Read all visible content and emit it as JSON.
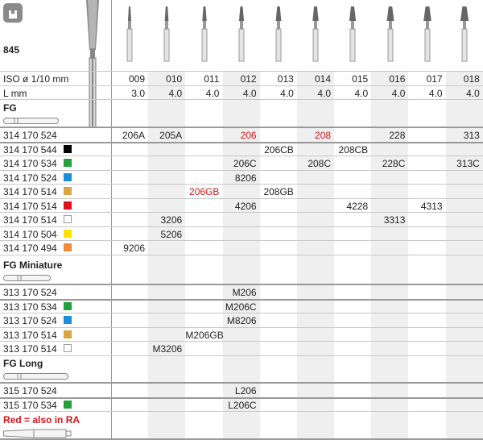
{
  "header": {
    "icon": "bur-shape-icon",
    "product_number": "845"
  },
  "columns": {
    "iso_label": "ISO ø 1/10 mm",
    "length_label": "L mm",
    "iso": [
      "009",
      "010",
      "011",
      "012",
      "013",
      "014",
      "015",
      "016",
      "017",
      "018"
    ],
    "length": [
      "3.0",
      "4.0",
      "4.0",
      "4.0",
      "4.0",
      "4.0",
      "4.0",
      "4.0",
      "4.0",
      "4.0"
    ]
  },
  "colors": {
    "black": "#000000",
    "green": "#23a03c",
    "blue": "#1b8fd9",
    "gold": "#d9a545",
    "red": "#e2101b",
    "white": "#ffffff",
    "yellow": "#ffe100",
    "orange": "#f08a3c",
    "highlight_text": "#d4151c"
  },
  "sections": [
    {
      "title": "FG",
      "rows": [
        {
          "ref": "314 170 524",
          "swatch": null,
          "cells": [
            "206A",
            "205A",
            "",
            "206",
            "",
            "208",
            "",
            "228",
            "",
            "313"
          ],
          "red": [
            3,
            5
          ]
        },
        {
          "ref": "314 170 544",
          "swatch": "black",
          "cells": [
            "",
            "",
            "",
            "",
            "206CB",
            "",
            "208CB",
            "",
            "",
            ""
          ],
          "red": []
        },
        {
          "ref": "314 170 534",
          "swatch": "green",
          "cells": [
            "",
            "",
            "",
            "206C",
            "",
            "208C",
            "",
            "228C",
            "",
            "313C"
          ],
          "red": []
        },
        {
          "ref": "314 170 524",
          "swatch": "blue",
          "cells": [
            "",
            "",
            "",
            "8206",
            "",
            "",
            "",
            "",
            "",
            ""
          ],
          "red": []
        },
        {
          "ref": "314 170 514",
          "swatch": "gold",
          "cells": [
            "",
            "",
            "206GB",
            "",
            "208GB",
            "",
            "",
            "",
            "",
            ""
          ],
          "red": [
            2
          ]
        },
        {
          "ref": "314 170 514",
          "swatch": "red",
          "cells": [
            "",
            "",
            "",
            "4206",
            "",
            "",
            "4228",
            "",
            "4313",
            ""
          ],
          "red": []
        },
        {
          "ref": "314 170 514",
          "swatch": "white",
          "cells": [
            "",
            "3206",
            "",
            "",
            "",
            "",
            "",
            "3313",
            "",
            ""
          ],
          "red": []
        },
        {
          "ref": "314 170 504",
          "swatch": "yellow",
          "cells": [
            "",
            "5206",
            "",
            "",
            "",
            "",
            "",
            "",
            "",
            ""
          ],
          "red": []
        },
        {
          "ref": "314 170 494",
          "swatch": "orange",
          "cells": [
            "9206",
            "",
            "",
            "",
            "",
            "",
            "",
            "",
            "",
            ""
          ],
          "red": []
        }
      ]
    },
    {
      "title": "FG Miniature",
      "rows": [
        {
          "ref": "313 170 524",
          "swatch": null,
          "cells": [
            "",
            "",
            "",
            "M206",
            "",
            "",
            "",
            "",
            "",
            ""
          ],
          "red": []
        },
        {
          "ref": "313 170 534",
          "swatch": "green",
          "cells": [
            "",
            "",
            "",
            "M206C",
            "",
            "",
            "",
            "",
            "",
            ""
          ],
          "red": []
        },
        {
          "ref": "313 170 524",
          "swatch": "blue",
          "cells": [
            "",
            "",
            "",
            "M8206",
            "",
            "",
            "",
            "",
            "",
            ""
          ],
          "red": []
        },
        {
          "ref": "313 170 514",
          "swatch": "gold",
          "cells": [
            "",
            "",
            "M206GB",
            "",
            "",
            "",
            "",
            "",
            "",
            ""
          ],
          "red": []
        },
        {
          "ref": "313 170 514",
          "swatch": "white",
          "cells": [
            "",
            "M3206",
            "",
            "",
            "",
            "",
            "",
            "",
            "",
            ""
          ],
          "red": []
        }
      ]
    },
    {
      "title": "FG Long",
      "rows": [
        {
          "ref": "315 170 524",
          "swatch": null,
          "cells": [
            "",
            "",
            "",
            "L206",
            "",
            "",
            "",
            "",
            "",
            ""
          ],
          "red": []
        },
        {
          "ref": "315 170 534",
          "swatch": "green",
          "cells": [
            "",
            "",
            "",
            "L206C",
            "",
            "",
            "",
            "",
            "",
            ""
          ],
          "red": []
        }
      ]
    }
  ],
  "legend": {
    "text": "Red = also in RA"
  }
}
